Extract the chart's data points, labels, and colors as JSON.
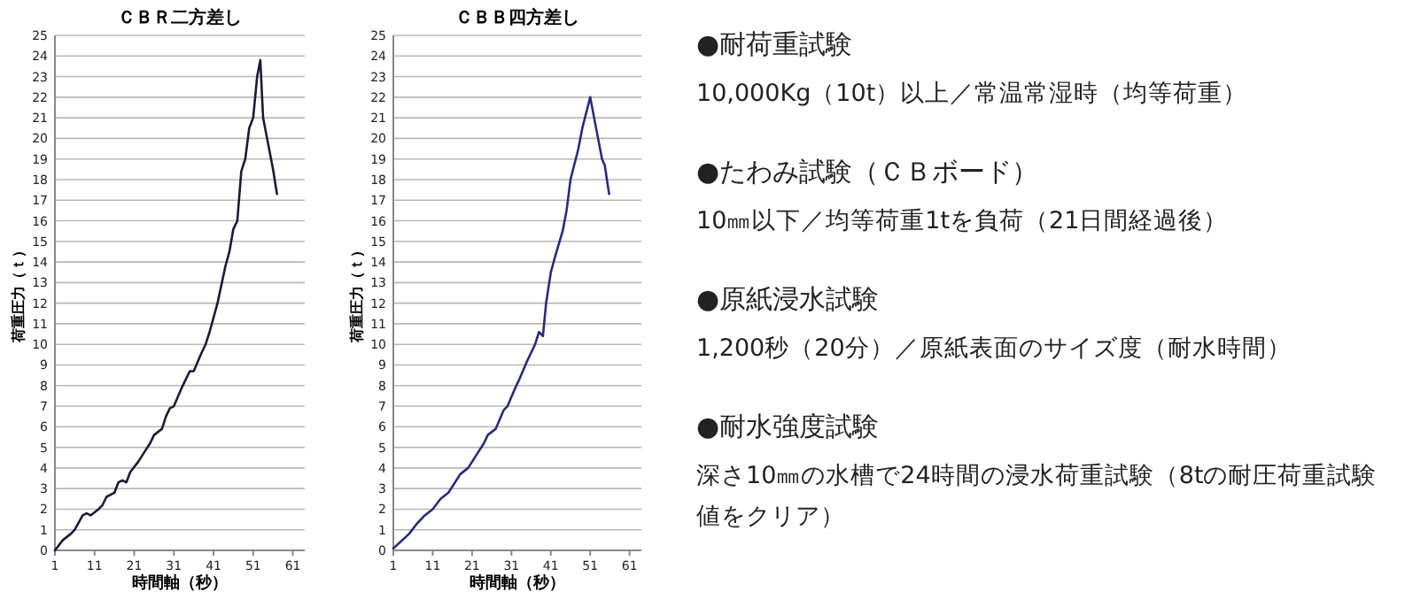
{
  "chart_data": [
    {
      "type": "line",
      "title": "ＣＢＲ二方差し",
      "xlabel": "時間軸（秒）",
      "ylabel": "荷重圧力（ｔ）",
      "xlim": [
        1,
        64
      ],
      "xticks": [
        1,
        11,
        21,
        31,
        41,
        51,
        61
      ],
      "ylim": [
        0,
        25
      ],
      "yticks": [
        0,
        1,
        2,
        3,
        4,
        5,
        6,
        7,
        8,
        9,
        10,
        11,
        12,
        13,
        14,
        15,
        16,
        17,
        18,
        19,
        20,
        21,
        22,
        23,
        24,
        25
      ],
      "grid": "y",
      "series": [
        {
          "color": "#1a1a3a",
          "x": [
            1,
            3,
            5,
            6,
            8,
            9,
            10,
            12,
            13,
            14,
            16,
            17,
            18,
            19,
            20,
            22,
            24,
            25,
            26,
            28,
            29,
            30,
            31,
            33,
            35,
            36,
            38,
            39,
            40,
            42,
            44,
            45,
            46,
            47,
            48,
            49,
            50,
            51,
            52,
            52.8,
            53.5,
            55,
            56,
            57
          ],
          "values": [
            0,
            0.5,
            0.8,
            1.0,
            1.7,
            1.8,
            1.7,
            2.0,
            2.2,
            2.6,
            2.8,
            3.3,
            3.4,
            3.3,
            3.8,
            4.3,
            4.9,
            5.2,
            5.6,
            5.9,
            6.5,
            6.9,
            7.0,
            7.9,
            8.7,
            8.7,
            9.6,
            10.0,
            10.6,
            12.0,
            13.8,
            14.5,
            15.6,
            16.0,
            18.4,
            19.0,
            20.5,
            21.0,
            23.0,
            23.8,
            21.0,
            19.5,
            18.5,
            17.3
          ]
        }
      ]
    },
    {
      "type": "line",
      "title": "ＣＢＢ四方差し",
      "xlabel": "時間軸（秒）",
      "ylabel": "荷重圧力（ｔ）",
      "xlim": [
        1,
        64
      ],
      "xticks": [
        1,
        11,
        21,
        31,
        41,
        51,
        61
      ],
      "ylim": [
        0,
        25
      ],
      "yticks": [
        0,
        1,
        2,
        3,
        4,
        5,
        6,
        7,
        8,
        9,
        10,
        11,
        12,
        13,
        14,
        15,
        16,
        17,
        18,
        19,
        20,
        21,
        22,
        23,
        24,
        25
      ],
      "grid": "y",
      "series": [
        {
          "color": "#2a2a7a",
          "x": [
            1,
            5,
            7,
            9,
            11,
            13,
            15,
            17,
            18,
            20,
            22,
            24,
            25,
            27,
            29,
            30,
            32,
            33,
            35,
            37,
            38,
            39,
            39.8,
            41,
            42,
            44,
            45,
            46,
            48,
            49,
            51,
            52,
            54,
            54.7,
            55.8
          ],
          "values": [
            0.1,
            0.8,
            1.3,
            1.7,
            2.0,
            2.5,
            2.8,
            3.4,
            3.7,
            4.0,
            4.6,
            5.2,
            5.6,
            5.9,
            6.8,
            7.0,
            7.9,
            8.3,
            9.2,
            10.0,
            10.6,
            10.4,
            12.0,
            13.5,
            14.2,
            15.5,
            16.5,
            18.0,
            19.5,
            20.5,
            22.0,
            21.0,
            19.0,
            18.7,
            17.3
          ]
        }
      ]
    },
    {
      "type": "other",
      "annotations": [
        "●耐荷重試験",
        "10,000Kg（10t）以上／常温常湿時（均等荷重）",
        "●たわみ試験（ＣＢボード）",
        "10㎜以下／均等荷重1tを負荷（21日間経過後）",
        "●原紙浸水試験",
        "1,200秒（20分）／原紙表面のサイズ度（耐水時間）",
        "●耐水強度試験",
        "深さ10㎜の水槽で24時間の浸水荷重試験（8tの耐圧荷重試験値をクリア）"
      ]
    }
  ]
}
